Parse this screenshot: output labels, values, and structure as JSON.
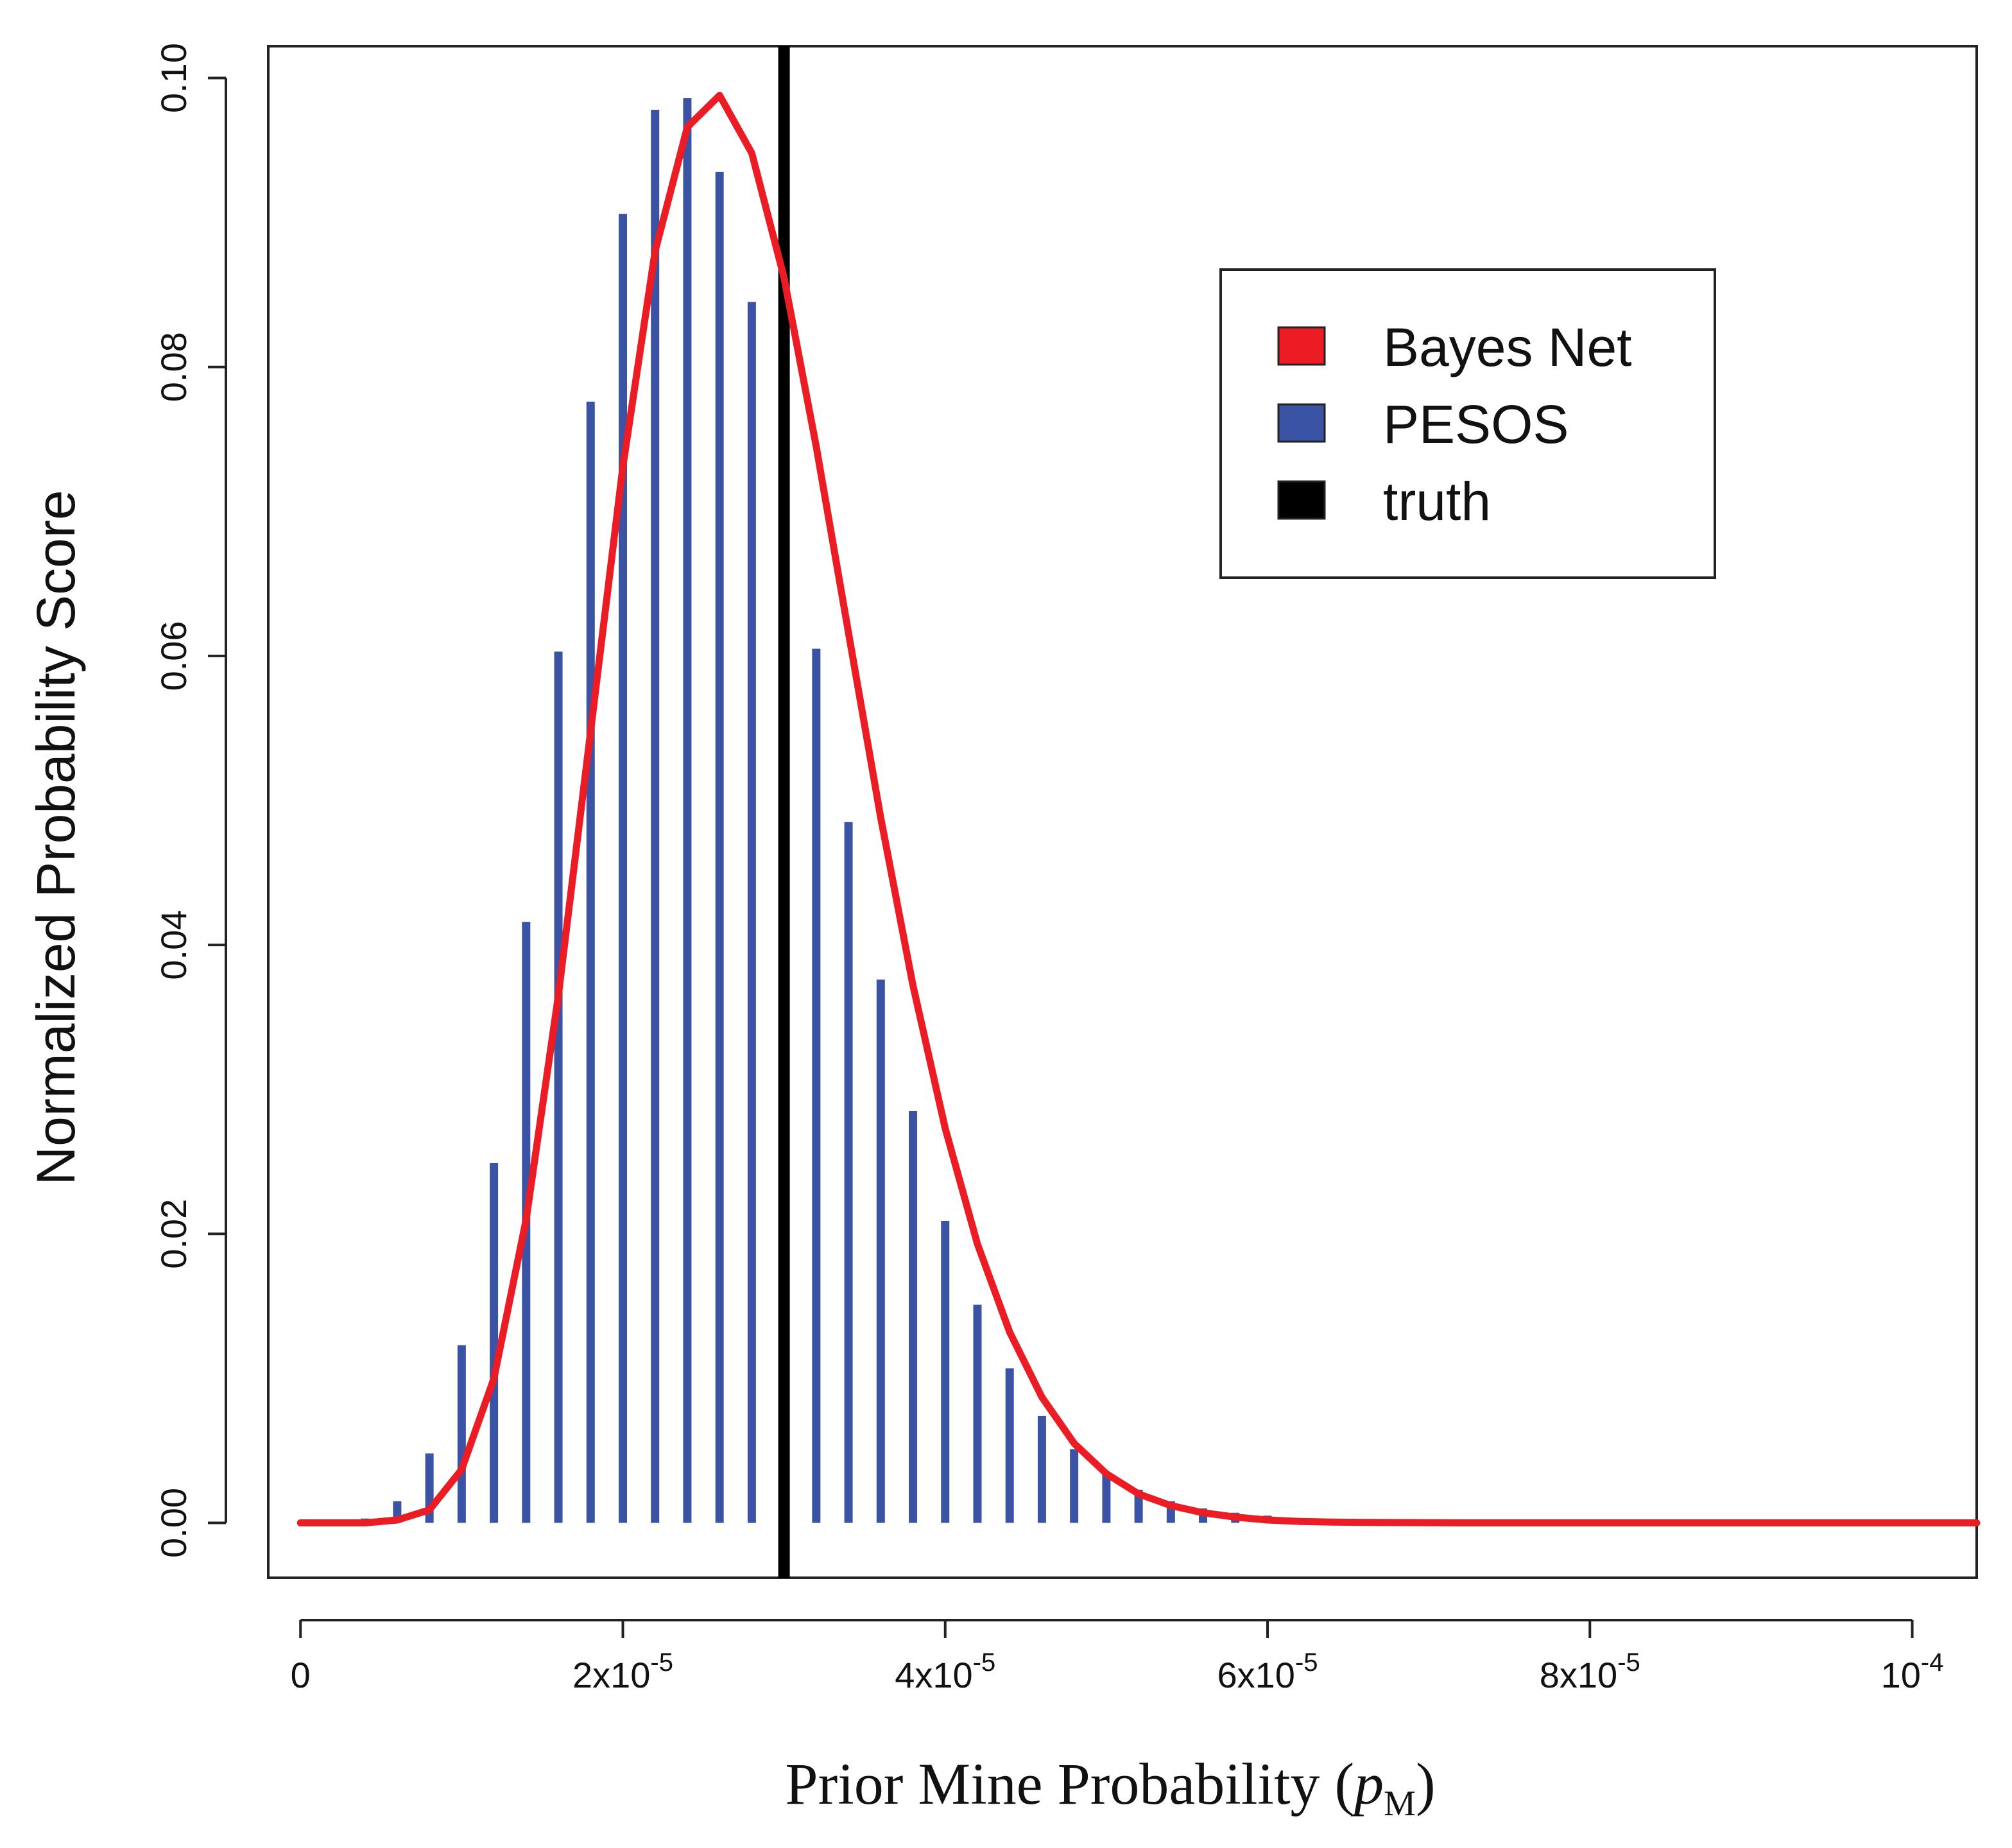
{
  "chart_data": {
    "type": "bar",
    "title": "",
    "xlabel": "Prior Mine Probability (",
    "xlabel_var": "p",
    "xlabel_sub": "M",
    "xlabel_close": ")",
    "ylabel": "Normalized Probability Score",
    "xlim": [
      -2e-06,
      0.000104
    ],
    "ylim": [
      -0.0038,
      0.1022
    ],
    "x_ticks": [
      {
        "value": 0,
        "base": "0",
        "exp": ""
      },
      {
        "value": 2e-05,
        "base": "2x10",
        "exp": "-5"
      },
      {
        "value": 4e-05,
        "base": "4x10",
        "exp": "-5"
      },
      {
        "value": 6e-05,
        "base": "6x10",
        "exp": "-5"
      },
      {
        "value": 8e-05,
        "base": "8x10",
        "exp": "-5"
      },
      {
        "value": 0.0001,
        "base": "10",
        "exp": "-4"
      }
    ],
    "y_ticks": [
      {
        "value": 0.0,
        "label": "0.00"
      },
      {
        "value": 0.02,
        "label": "0.02"
      },
      {
        "value": 0.04,
        "label": "0.04"
      },
      {
        "value": 0.06,
        "label": "0.06"
      },
      {
        "value": 0.08,
        "label": "0.08"
      },
      {
        "value": 0.1,
        "label": "0.10"
      }
    ],
    "series": [
      {
        "name": "PESOS",
        "type": "bar",
        "color": "#3a53a4",
        "x": [
          4e-06,
          6e-06,
          8e-06,
          1e-05,
          1.2e-05,
          1.4e-05,
          1.6e-05,
          1.8e-05,
          2e-05,
          2.2e-05,
          2.4e-05,
          2.6e-05,
          2.8e-05,
          3e-05,
          3.2e-05,
          3.4e-05,
          3.6e-05,
          3.8e-05,
          4e-05,
          4.2e-05,
          4.4e-05,
          4.6e-05,
          4.8e-05,
          5e-05,
          5.2e-05,
          5.4e-05,
          5.6e-05,
          5.8e-05,
          6e-05,
          6.2e-05,
          6.4e-05,
          6.6e-05,
          6.8e-05,
          7e-05,
          7.2e-05
        ],
        "values": [
          0.0003,
          0.0015,
          0.0048,
          0.0123,
          0.0249,
          0.0416,
          0.0603,
          0.0776,
          0.0906,
          0.0978,
          0.0986,
          0.0935,
          0.0845,
          0.0733,
          0.0605,
          0.0485,
          0.0376,
          0.0285,
          0.0209,
          0.0151,
          0.0107,
          0.0074,
          0.0051,
          0.0035,
          0.0023,
          0.0015,
          0.001,
          0.0007,
          0.0005,
          0.0003,
          0.0002,
          0.00015,
          0.0001,
          8e-05,
          5e-05
        ]
      },
      {
        "name": "Bayes Net",
        "type": "line",
        "color": "#ec1c24",
        "x": [
          0,
          2e-06,
          4e-06,
          6e-06,
          8e-06,
          1e-05,
          1.2e-05,
          1.4e-05,
          1.6e-05,
          1.8e-05,
          2e-05,
          2.2e-05,
          2.4e-05,
          2.6e-05,
          2.8e-05,
          3e-05,
          3.2e-05,
          3.4e-05,
          3.6e-05,
          3.8e-05,
          4e-05,
          4.2e-05,
          4.4e-05,
          4.6e-05,
          4.8e-05,
          5e-05,
          5.2e-05,
          5.4e-05,
          5.6e-05,
          5.8e-05,
          6e-05,
          6.2e-05,
          6.4e-05,
          6.6e-05,
          6.8e-05,
          7e-05,
          7.2e-05,
          8e-05,
          9e-05,
          0.0001,
          0.000104
        ],
        "values": [
          0.0,
          0.0,
          0.0,
          0.0002,
          0.0009,
          0.0037,
          0.01,
          0.021,
          0.0365,
          0.0548,
          0.0731,
          0.088,
          0.0966,
          0.0988,
          0.0948,
          0.0862,
          0.0745,
          0.0616,
          0.0488,
          0.0372,
          0.0273,
          0.0193,
          0.0132,
          0.0087,
          0.0055,
          0.0034,
          0.002,
          0.0012,
          0.0007,
          0.0004,
          0.0002,
          0.0001,
          5e-05,
          3e-05,
          2e-05,
          1e-05,
          0.0,
          0.0,
          0.0,
          0.0,
          0.0
        ]
      },
      {
        "name": "truth",
        "type": "vline",
        "color": "#000000",
        "x": 3e-05
      }
    ],
    "legend": {
      "position": "top-right",
      "entries": [
        {
          "label": "Bayes Net",
          "color": "#ec1c24"
        },
        {
          "label": "PESOS",
          "color": "#3a53a4"
        },
        {
          "label": "truth",
          "color": "#000000"
        }
      ]
    }
  }
}
